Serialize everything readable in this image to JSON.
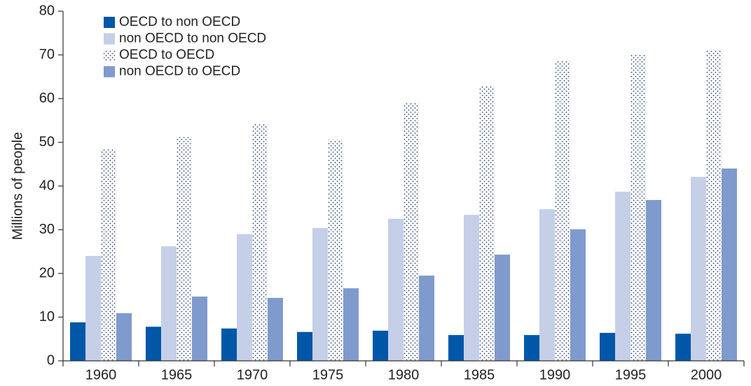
{
  "chart_data": {
    "type": "bar",
    "y_label": "Millions of people",
    "categories": [
      "1960",
      "1965",
      "1970",
      "1975",
      "1980",
      "1985",
      "1990",
      "1995",
      "2000"
    ],
    "series": [
      {
        "name": "OECD to non OECD",
        "color": "#0057a8",
        "values": [
          8.8,
          7.8,
          7.4,
          6.6,
          6.9,
          5.9,
          5.9,
          6.4,
          6.2
        ]
      },
      {
        "name": "non OECD to non OECD",
        "color": "#c5cfe8",
        "values": [
          24,
          26.2,
          29,
          30.4,
          32.5,
          33.4,
          34.7,
          38.7,
          42.1
        ]
      },
      {
        "name": "OECD to OECD",
        "color": "#2a3f6e",
        "pattern": "dots",
        "values": [
          48.5,
          51.2,
          54.2,
          50.6,
          59,
          62.9,
          68.6,
          70.2,
          71.2
        ]
      },
      {
        "name": "non OECD to OECD",
        "color": "#7f9acd",
        "values": [
          10.9,
          14.7,
          14.4,
          16.6,
          19.5,
          24.3,
          30.1,
          36.8,
          44
        ]
      }
    ],
    "ylim": [
      0,
      80
    ],
    "yticks": [
      0,
      10,
      20,
      30,
      40,
      50,
      60,
      70,
      80
    ],
    "legend": "top-left"
  }
}
